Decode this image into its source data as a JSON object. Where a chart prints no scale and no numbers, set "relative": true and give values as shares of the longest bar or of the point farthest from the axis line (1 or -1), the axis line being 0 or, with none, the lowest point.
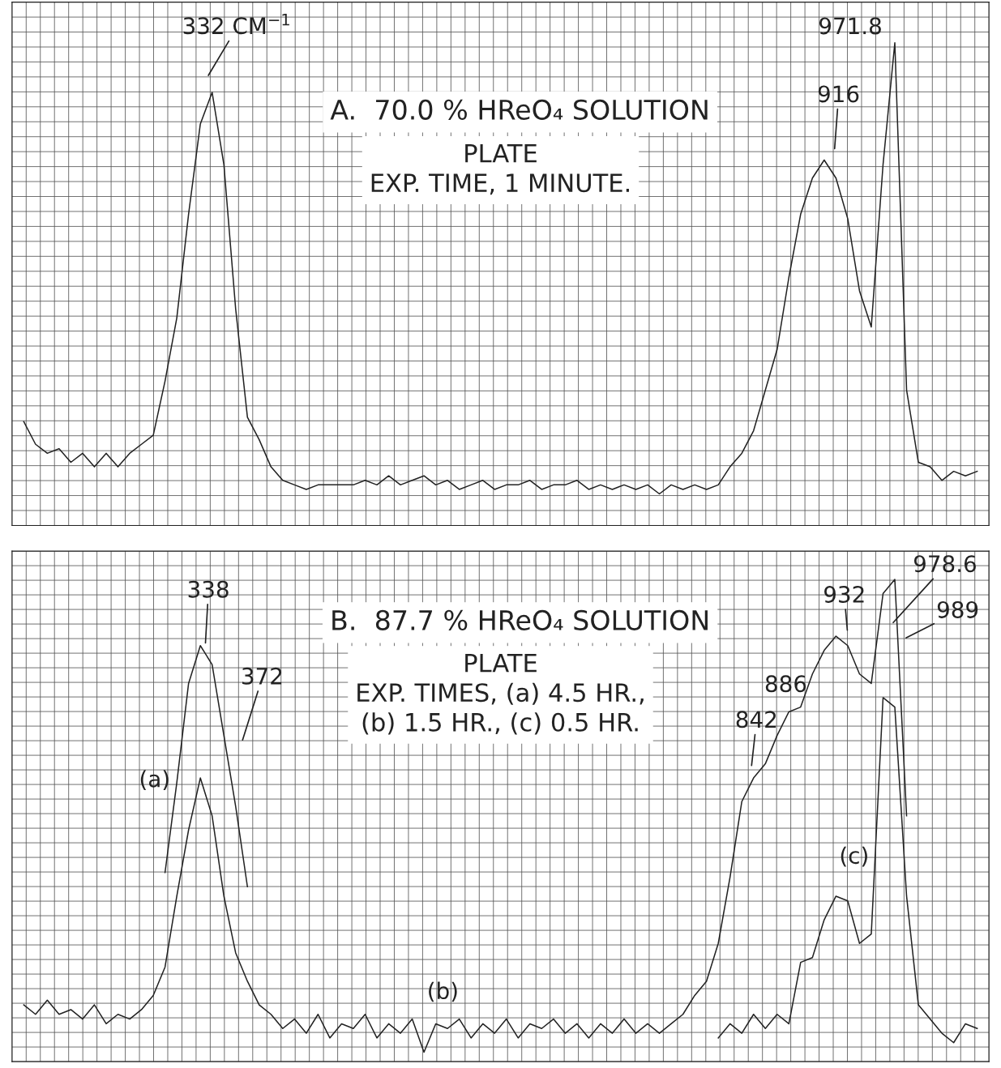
{
  "chart_data": [
    {
      "type": "line",
      "title": "A.  70.0 % HReO₄ SOLUTION",
      "subtitle": "PLATE\nEXP. TIME, 1 MINUTE.",
      "relative": true,
      "grid": true,
      "categories": [
        null,
        null,
        null,
        null,
        null,
        null,
        null,
        null,
        null,
        null,
        null,
        null,
        null,
        null,
        null,
        null,
        null,
        null,
        null,
        null,
        null,
        null,
        null,
        null,
        null,
        null,
        null,
        null,
        null,
        null,
        null,
        null,
        null,
        null,
        null,
        null,
        null,
        null,
        null,
        null,
        null,
        null,
        null,
        null,
        null,
        null,
        null,
        null,
        null,
        null,
        null,
        null,
        null,
        null,
        null,
        null,
        null,
        null,
        null,
        null,
        null,
        null,
        null,
        null,
        null,
        null,
        null,
        null,
        null,
        null,
        null,
        null,
        null,
        null,
        null,
        null,
        null,
        null,
        null,
        null,
        null,
        null
      ],
      "series": [
        {
          "color": "#222222",
          "values": [
            0.16,
            0.11,
            0.09,
            0.1,
            0.07,
            0.09,
            0.06,
            0.09,
            0.06,
            0.09,
            0.11,
            0.13,
            0.25,
            0.39,
            0.62,
            0.82,
            0.89,
            0.73,
            0.41,
            0.17,
            0.12,
            0.06,
            0.03,
            0.02,
            0.01,
            0.02,
            0.02,
            0.02,
            0.02,
            0.03,
            0.02,
            0.04,
            0.02,
            0.03,
            0.04,
            0.02,
            0.03,
            0.01,
            0.02,
            0.03,
            0.01,
            0.02,
            0.02,
            0.03,
            0.01,
            0.02,
            0.02,
            0.03,
            0.01,
            0.02,
            0.01,
            0.02,
            0.01,
            0.02,
            0.0,
            0.02,
            0.01,
            0.02,
            0.01,
            0.02,
            0.06,
            0.09,
            0.14,
            0.23,
            0.32,
            0.48,
            0.62,
            0.7,
            0.74,
            0.7,
            0.61,
            0.45,
            0.37,
            0.73,
            1.0,
            0.23,
            0.07,
            0.06,
            0.03,
            0.05,
            0.04,
            0.05
          ]
        }
      ],
      "annotations": [
        "332 CM$^{−1}$",
        "916",
        "971.8"
      ]
    },
    {
      "type": "line",
      "title": "B.  87.7 % HReO₄ SOLUTION",
      "subtitle": "PLATE\nEXP. TIMES, (a) 4.5 HR.,\n(b) 1.5 HR., (c) 0.5 HR.",
      "relative": true,
      "grid": true,
      "categories": [
        null,
        null,
        null,
        null,
        null,
        null,
        null,
        null,
        null,
        null,
        null,
        null,
        null,
        null,
        null,
        null,
        null,
        null,
        null,
        null,
        null,
        null,
        null,
        null,
        null,
        null,
        null,
        null,
        null,
        null,
        null,
        null,
        null,
        null,
        null,
        null,
        null,
        null,
        null,
        null,
        null,
        null,
        null,
        null,
        null,
        null,
        null,
        null,
        null,
        null,
        null,
        null,
        null,
        null,
        null,
        null,
        null,
        null,
        null,
        null,
        null,
        null,
        null,
        null,
        null,
        null,
        null,
        null,
        null,
        null,
        null,
        null,
        null,
        null,
        null,
        null,
        null,
        null,
        null,
        null,
        null,
        null
      ],
      "series": [
        {
          "name": "(a)",
          "color": "#222222",
          "values": [
            null,
            null,
            null,
            null,
            null,
            null,
            null,
            null,
            null,
            null,
            null,
            null,
            0.38,
            0.57,
            0.78,
            0.86,
            0.82,
            0.67,
            0.52,
            0.35,
            null,
            null,
            null,
            null,
            null,
            null,
            null,
            null,
            null,
            null,
            null,
            null,
            null,
            null,
            null,
            null,
            null,
            null,
            null,
            null,
            null,
            null,
            null,
            null,
            null,
            null,
            null,
            null,
            null,
            null,
            null,
            null,
            null,
            null,
            null,
            null,
            null,
            null,
            null,
            null,
            null,
            null,
            null,
            null,
            null,
            null,
            null,
            null,
            null,
            null,
            null,
            null,
            null,
            null,
            null,
            null,
            null,
            null,
            null,
            null,
            null,
            null
          ]
        },
        {
          "name": "(b)",
          "color": "#222222",
          "values": [
            0.1,
            0.08,
            0.11,
            0.08,
            0.09,
            0.07,
            0.1,
            0.06,
            0.08,
            0.07,
            0.09,
            0.12,
            0.18,
            0.33,
            0.47,
            0.58,
            0.5,
            0.33,
            0.21,
            0.15,
            0.1,
            0.08,
            0.05,
            0.07,
            0.04,
            0.08,
            0.03,
            0.06,
            0.05,
            0.08,
            0.03,
            0.06,
            0.04,
            0.07,
            0.0,
            0.06,
            0.05,
            0.07,
            0.03,
            0.06,
            0.04,
            0.07,
            0.03,
            0.06,
            0.05,
            0.07,
            0.04,
            0.06,
            0.03,
            0.06,
            0.04,
            0.07,
            0.04,
            0.06,
            0.04,
            0.06,
            0.08,
            0.12,
            0.15,
            0.23,
            0.37,
            0.53,
            0.58,
            0.61,
            0.67,
            0.72,
            0.73,
            0.8,
            0.85,
            0.88,
            0.86,
            0.8,
            0.78,
            0.97,
            1.0,
            0.5,
            null,
            null,
            null,
            null,
            null,
            null
          ]
        },
        {
          "name": "(c)",
          "color": "#222222",
          "values": [
            null,
            null,
            null,
            null,
            null,
            null,
            null,
            null,
            null,
            null,
            null,
            null,
            null,
            null,
            null,
            null,
            null,
            null,
            null,
            null,
            null,
            null,
            null,
            null,
            null,
            null,
            null,
            null,
            null,
            null,
            null,
            null,
            null,
            null,
            null,
            null,
            null,
            null,
            null,
            null,
            null,
            null,
            null,
            null,
            null,
            null,
            null,
            null,
            null,
            null,
            null,
            null,
            null,
            null,
            null,
            null,
            null,
            null,
            null,
            0.03,
            0.06,
            0.04,
            0.08,
            0.05,
            0.08,
            0.06,
            0.19,
            0.2,
            0.28,
            0.33,
            0.32,
            0.23,
            0.25,
            0.75,
            0.73,
            0.33,
            0.1,
            0.07,
            0.04,
            0.02,
            0.06,
            0.05
          ]
        }
      ],
      "annotations": [
        "338",
        "372",
        "886",
        "842",
        "932",
        "978.6",
        "989"
      ]
    }
  ]
}
